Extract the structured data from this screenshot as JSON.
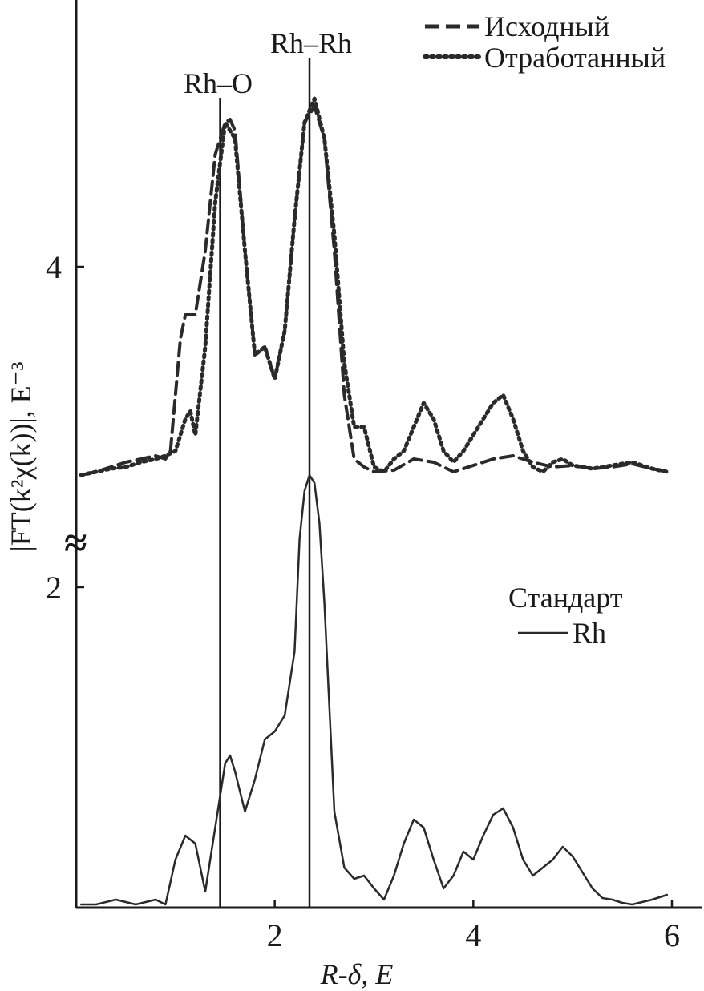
{
  "chart_data": {
    "type": "line",
    "xlabel": "R-δ, Е",
    "ylabel": "|FT(k²χ(k))|, Е⁻³",
    "xlim": [
      0,
      6
    ],
    "ylim": [
      0,
      5
    ],
    "x_ticks": [
      2,
      4,
      6
    ],
    "y_ticks": [
      2,
      4
    ],
    "axis_break": "≈",
    "annotations": [
      {
        "text": "Rh–O",
        "x": 1.45
      },
      {
        "text": "Rh–Rh",
        "x": 2.35
      }
    ],
    "legend_top": {
      "placement": "top-right",
      "entries": [
        "Исходный",
        "Отработанный"
      ]
    },
    "legend_bottom": {
      "title": "Стандарт",
      "entries": [
        "Rh"
      ]
    },
    "series": [
      {
        "name": "Исходный",
        "style": "dashed",
        "x": [
          0.05,
          0.2,
          0.35,
          0.5,
          0.65,
          0.8,
          0.9,
          0.95,
          1.0,
          1.05,
          1.1,
          1.2,
          1.3,
          1.4,
          1.5,
          1.55,
          1.6,
          1.7,
          1.8,
          1.9,
          2.0,
          2.1,
          2.2,
          2.3,
          2.4,
          2.5,
          2.6,
          2.7,
          2.8,
          2.9,
          3.0,
          3.2,
          3.4,
          3.6,
          3.8,
          4.0,
          4.2,
          4.4,
          4.6,
          4.8,
          5.0,
          5.2,
          5.4,
          5.6,
          5.8,
          5.95
        ],
        "y": [
          2.7,
          2.72,
          2.75,
          2.78,
          2.8,
          2.82,
          2.8,
          2.85,
          3.2,
          3.55,
          3.7,
          3.7,
          4.1,
          4.7,
          4.9,
          4.92,
          4.85,
          4.1,
          3.45,
          3.5,
          3.3,
          3.6,
          4.3,
          4.9,
          5.0,
          4.8,
          4.1,
          3.2,
          2.8,
          2.75,
          2.72,
          2.73,
          2.8,
          2.78,
          2.72,
          2.76,
          2.8,
          2.82,
          2.78,
          2.75,
          2.76,
          2.74,
          2.75,
          2.77,
          2.74,
          2.72
        ]
      },
      {
        "name": "Отработанный",
        "style": "dotted",
        "x": [
          0.05,
          0.2,
          0.35,
          0.5,
          0.65,
          0.8,
          0.9,
          1.0,
          1.1,
          1.15,
          1.2,
          1.3,
          1.4,
          1.5,
          1.6,
          1.7,
          1.8,
          1.9,
          2.0,
          2.1,
          2.2,
          2.3,
          2.4,
          2.5,
          2.6,
          2.7,
          2.8,
          2.9,
          3.0,
          3.1,
          3.2,
          3.3,
          3.4,
          3.5,
          3.6,
          3.7,
          3.8,
          3.9,
          4.0,
          4.1,
          4.2,
          4.3,
          4.4,
          4.5,
          4.6,
          4.7,
          4.8,
          4.9,
          5.0,
          5.2,
          5.4,
          5.6,
          5.8,
          5.95
        ],
        "y": [
          2.7,
          2.72,
          2.74,
          2.75,
          2.78,
          2.8,
          2.82,
          2.85,
          3.05,
          3.1,
          2.95,
          3.5,
          4.4,
          4.9,
          4.8,
          4.1,
          3.45,
          3.5,
          3.3,
          3.6,
          4.3,
          4.9,
          5.05,
          4.8,
          4.2,
          3.4,
          3.0,
          3.0,
          2.75,
          2.72,
          2.8,
          2.85,
          3.0,
          3.15,
          3.05,
          2.85,
          2.78,
          2.85,
          2.95,
          3.05,
          3.15,
          3.2,
          3.05,
          2.85,
          2.75,
          2.72,
          2.78,
          2.8,
          2.76,
          2.74,
          2.76,
          2.78,
          2.74,
          2.72
        ]
      },
      {
        "name": "Rh",
        "style": "solid",
        "x": [
          0.05,
          0.2,
          0.4,
          0.6,
          0.8,
          0.9,
          1.0,
          1.1,
          1.2,
          1.3,
          1.4,
          1.45,
          1.5,
          1.55,
          1.6,
          1.7,
          1.8,
          1.9,
          2.0,
          2.1,
          2.2,
          2.25,
          2.3,
          2.35,
          2.4,
          2.45,
          2.5,
          2.6,
          2.7,
          2.8,
          2.9,
          3.0,
          3.1,
          3.2,
          3.3,
          3.4,
          3.5,
          3.6,
          3.7,
          3.8,
          3.9,
          4.0,
          4.1,
          4.2,
          4.3,
          4.4,
          4.5,
          4.6,
          4.7,
          4.8,
          4.9,
          5.0,
          5.1,
          5.2,
          5.3,
          5.4,
          5.5,
          5.6,
          5.8,
          5.95
        ],
        "y": [
          0.02,
          0.02,
          0.05,
          0.02,
          0.05,
          0.02,
          0.3,
          0.45,
          0.4,
          0.1,
          0.5,
          0.7,
          0.9,
          0.95,
          0.85,
          0.6,
          0.8,
          1.05,
          1.1,
          1.2,
          1.6,
          2.3,
          2.6,
          2.7,
          2.65,
          2.4,
          1.9,
          0.6,
          0.25,
          0.18,
          0.2,
          0.12,
          0.05,
          0.2,
          0.4,
          0.55,
          0.5,
          0.3,
          0.12,
          0.2,
          0.35,
          0.3,
          0.45,
          0.58,
          0.62,
          0.5,
          0.3,
          0.2,
          0.25,
          0.3,
          0.38,
          0.32,
          0.22,
          0.12,
          0.06,
          0.05,
          0.03,
          0.02,
          0.05,
          0.08
        ]
      }
    ]
  }
}
